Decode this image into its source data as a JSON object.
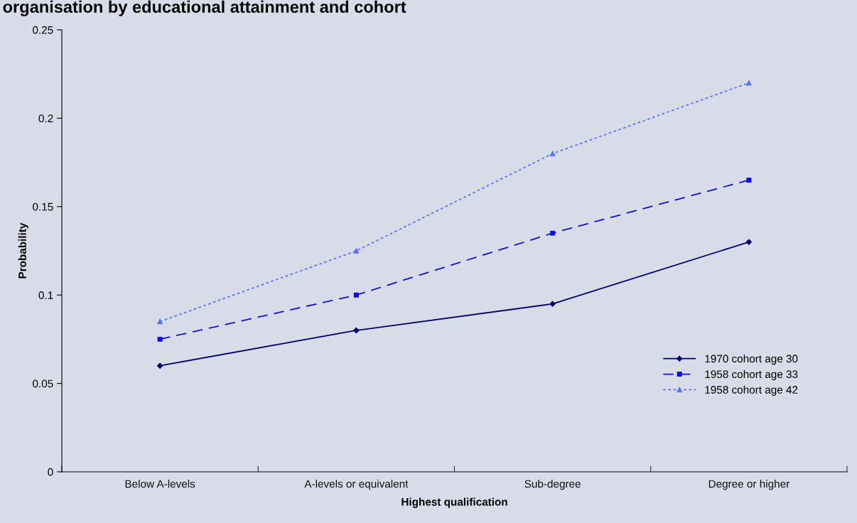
{
  "chart_data": {
    "type": "line",
    "title": "organisation by educational attainment and cohort",
    "xlabel": "Highest qualification",
    "ylabel": "Probability",
    "categories": [
      "Below A-levels",
      "A-levels or equivalent",
      "Sub-degree",
      "Degree or higher"
    ],
    "series": [
      {
        "name": "1970 cohort age 30",
        "color": "#000066",
        "marker": "diamond",
        "line_style": "solid",
        "values": [
          0.06,
          0.08,
          0.095,
          0.13
        ]
      },
      {
        "name": "1958 cohort age 33",
        "color": "#1010dd",
        "marker": "square",
        "line_style": "dashed",
        "values": [
          0.075,
          0.1,
          0.135,
          0.165
        ]
      },
      {
        "name": "1958 cohort age 42",
        "color": "#5577ee",
        "marker": "triangle",
        "line_style": "dotted",
        "values": [
          0.085,
          0.125,
          0.18,
          0.22
        ]
      }
    ],
    "ylim": [
      0,
      0.25
    ],
    "yticks": [
      0,
      0.05,
      0.1,
      0.15,
      0.2,
      0.25
    ],
    "grid": false,
    "legend": "bottom right"
  }
}
